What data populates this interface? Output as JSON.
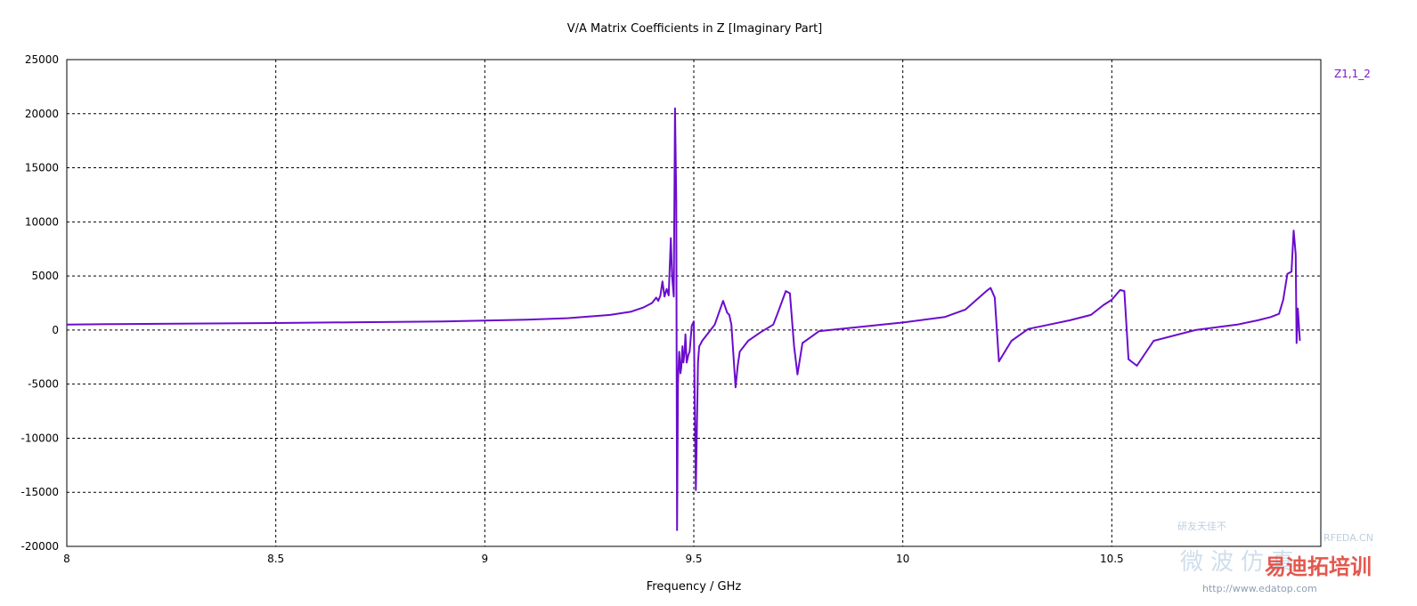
{
  "chart_data": {
    "type": "line",
    "title": "V/A Matrix Coefficients in Z [Imaginary Part]",
    "xlabel": "Frequency / GHz",
    "ylabel": "",
    "xlim": [
      8,
      11
    ],
    "ylim": [
      -20000,
      25000
    ],
    "x_ticks": [
      8,
      8.5,
      9,
      9.5,
      10,
      10.5
    ],
    "x_tick_labels": [
      "8",
      "8.5",
      "9",
      "9.5",
      "10",
      "10.5"
    ],
    "y_ticks": [
      -20000,
      -15000,
      -10000,
      -5000,
      0,
      5000,
      10000,
      15000,
      20000,
      25000
    ],
    "y_tick_labels": [
      "-20000",
      "-15000",
      "-10000",
      "-5000",
      "0",
      "5000",
      "10000",
      "15000",
      "20000",
      "25000"
    ],
    "grid": true,
    "legend_position": "top-right",
    "series": [
      {
        "name": "Z1,1_2",
        "color": "#6a0dcc",
        "x": [
          8.0,
          8.1,
          8.3,
          8.5,
          8.7,
          8.9,
          9.0,
          9.1,
          9.2,
          9.3,
          9.35,
          9.38,
          9.4,
          9.41,
          9.415,
          9.42,
          9.425,
          9.43,
          9.435,
          9.44,
          9.445,
          9.448,
          9.452,
          9.455,
          9.458,
          9.46,
          9.462,
          9.463,
          9.465,
          9.468,
          9.47,
          9.473,
          9.475,
          9.478,
          9.48,
          9.483,
          9.487,
          9.49,
          9.495,
          9.5,
          9.505,
          9.51,
          9.512,
          9.513,
          9.516,
          9.52,
          9.53,
          9.55,
          9.57,
          9.58,
          9.585,
          9.59,
          9.6,
          9.605,
          9.61,
          9.63,
          9.66,
          9.69,
          9.7,
          9.72,
          9.73,
          9.74,
          9.748,
          9.76,
          9.8,
          9.9,
          10.0,
          10.1,
          10.15,
          10.2,
          10.21,
          10.22,
          10.23,
          10.26,
          10.3,
          10.35,
          10.4,
          10.45,
          10.48,
          10.5,
          10.52,
          10.53,
          10.54,
          10.55,
          10.56,
          10.6,
          10.7,
          10.8,
          10.85,
          10.88,
          10.9,
          10.91,
          10.92,
          10.93,
          10.935,
          10.94,
          10.942,
          10.945,
          10.95
        ],
        "values": [
          500,
          540,
          600,
          650,
          720,
          800,
          870,
          950,
          1100,
          1400,
          1700,
          2100,
          2500,
          3000,
          2700,
          3200,
          4500,
          3100,
          3800,
          3200,
          8500,
          5000,
          3100,
          20500,
          12000,
          -18500,
          -5000,
          -4000,
          -2000,
          -4000,
          -3500,
          -1500,
          -3000,
          -2000,
          -400,
          -3000,
          -2300,
          -2000,
          400,
          800,
          -14800,
          -3000,
          -2000,
          -1500,
          -1300,
          -1000,
          -500,
          500,
          2700,
          1600,
          1400,
          500,
          -5300,
          -3300,
          -2000,
          -1000,
          -200,
          500,
          1500,
          3600,
          3400,
          -1500,
          -4100,
          -1200,
          -100,
          300,
          700,
          1200,
          1900,
          3600,
          3900,
          3000,
          -2900,
          -1000,
          100,
          500,
          900,
          1400,
          2300,
          2800,
          3700,
          3600,
          -2700,
          -3000,
          -3300,
          -1000,
          0,
          500,
          900,
          1200,
          1500,
          2800,
          5200,
          5400,
          9200,
          7000,
          -1200,
          2000,
          -1000
        ]
      }
    ]
  },
  "watermark": {
    "text_top": "研友天佳不",
    "text_top2": "RFEDA.CN",
    "text_big": "微波仿真",
    "text_red": "易迪拓培训",
    "text_url": "http://www.edatop.com"
  }
}
